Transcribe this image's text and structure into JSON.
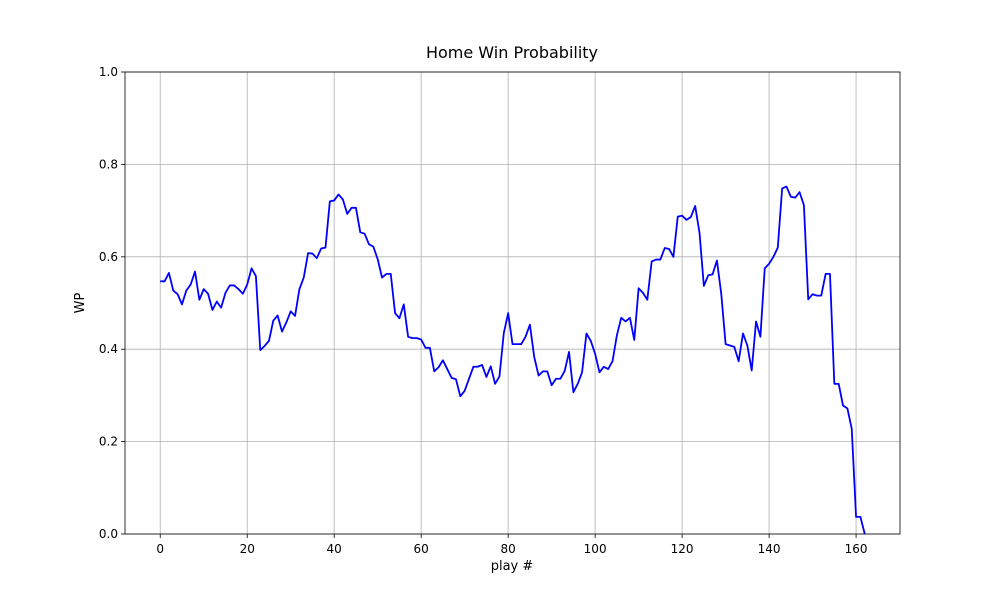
{
  "chart_data": {
    "type": "line",
    "title": "Home Win Probability",
    "x_label": "play #",
    "y_label": "WP",
    "color": "#0000ff",
    "grid": true,
    "xlim": [
      -8.1,
      170.1
    ],
    "xticks": [
      0,
      20,
      40,
      60,
      80,
      100,
      120,
      140,
      160
    ],
    "ylim": [
      0,
      1
    ],
    "yticks": [
      {
        "value": 0,
        "label": "0.0"
      },
      0.2,
      0.4,
      0.6,
      0.8,
      {
        "value": 1,
        "label": "1.0"
      }
    ],
    "x": [
      0,
      1,
      2,
      3,
      4,
      5,
      6,
      7,
      8,
      9,
      10,
      11,
      12,
      13,
      14,
      15,
      16,
      17,
      18,
      19,
      20,
      21,
      22,
      23,
      24,
      25,
      26,
      27,
      28,
      29,
      30,
      31,
      32,
      33,
      34,
      35,
      36,
      37,
      38,
      39,
      40,
      41,
      42,
      43,
      44,
      45,
      46,
      47,
      48,
      49,
      50,
      51,
      52,
      53,
      54,
      55,
      56,
      57,
      58,
      59,
      60,
      61,
      62,
      63,
      64,
      65,
      66,
      67,
      68,
      69,
      70,
      71,
      72,
      73,
      74,
      75,
      76,
      77,
      78,
      79,
      80,
      81,
      82,
      83,
      84,
      85,
      86,
      87,
      88,
      89,
      90,
      91,
      92,
      93,
      94,
      95,
      96,
      97,
      98,
      99,
      100,
      101,
      102,
      103,
      104,
      105,
      106,
      107,
      108,
      109,
      110,
      111,
      112,
      113,
      114,
      115,
      116,
      117,
      118,
      119,
      120,
      121,
      122,
      123,
      124,
      125,
      126,
      127,
      128,
      129,
      130,
      131,
      132,
      133,
      134,
      135,
      136,
      137,
      138,
      139,
      140,
      141,
      142,
      143,
      144,
      145,
      146,
      147,
      148,
      149,
      150,
      151,
      152,
      153,
      154,
      155,
      156,
      157,
      158,
      159,
      160,
      161,
      162
    ],
    "values": [
      0.547,
      0.547,
      0.565,
      0.527,
      0.519,
      0.497,
      0.527,
      0.54,
      0.568,
      0.507,
      0.53,
      0.52,
      0.485,
      0.503,
      0.49,
      0.522,
      0.538,
      0.538,
      0.53,
      0.52,
      0.54,
      0.575,
      0.558,
      0.398,
      0.407,
      0.418,
      0.462,
      0.473,
      0.438,
      0.458,
      0.482,
      0.472,
      0.53,
      0.555,
      0.608,
      0.607,
      0.597,
      0.618,
      0.62,
      0.72,
      0.722,
      0.735,
      0.724,
      0.693,
      0.706,
      0.706,
      0.653,
      0.65,
      0.627,
      0.622,
      0.595,
      0.555,
      0.563,
      0.563,
      0.478,
      0.467,
      0.497,
      0.427,
      0.424,
      0.424,
      0.421,
      0.403,
      0.403,
      0.352,
      0.361,
      0.376,
      0.357,
      0.338,
      0.335,
      0.298,
      0.31,
      0.336,
      0.362,
      0.362,
      0.366,
      0.34,
      0.363,
      0.325,
      0.341,
      0.435,
      0.478,
      0.411,
      0.411,
      0.411,
      0.427,
      0.453,
      0.383,
      0.343,
      0.352,
      0.352,
      0.322,
      0.336,
      0.336,
      0.353,
      0.394,
      0.307,
      0.325,
      0.35,
      0.434,
      0.418,
      0.39,
      0.35,
      0.362,
      0.357,
      0.374,
      0.43,
      0.468,
      0.46,
      0.468,
      0.42,
      0.532,
      0.522,
      0.507,
      0.59,
      0.594,
      0.594,
      0.619,
      0.617,
      0.6,
      0.687,
      0.689,
      0.68,
      0.686,
      0.71,
      0.652,
      0.537,
      0.56,
      0.562,
      0.592,
      0.52,
      0.411,
      0.408,
      0.405,
      0.374,
      0.434,
      0.408,
      0.354,
      0.46,
      0.427,
      0.575,
      0.585,
      0.6,
      0.62,
      0.748,
      0.752,
      0.73,
      0.728,
      0.74,
      0.712,
      0.508,
      0.519,
      0.516,
      0.516,
      0.563,
      0.563,
      0.325,
      0.325,
      0.278,
      0.272,
      0.228,
      0.037,
      0.037,
      0.0
    ]
  }
}
